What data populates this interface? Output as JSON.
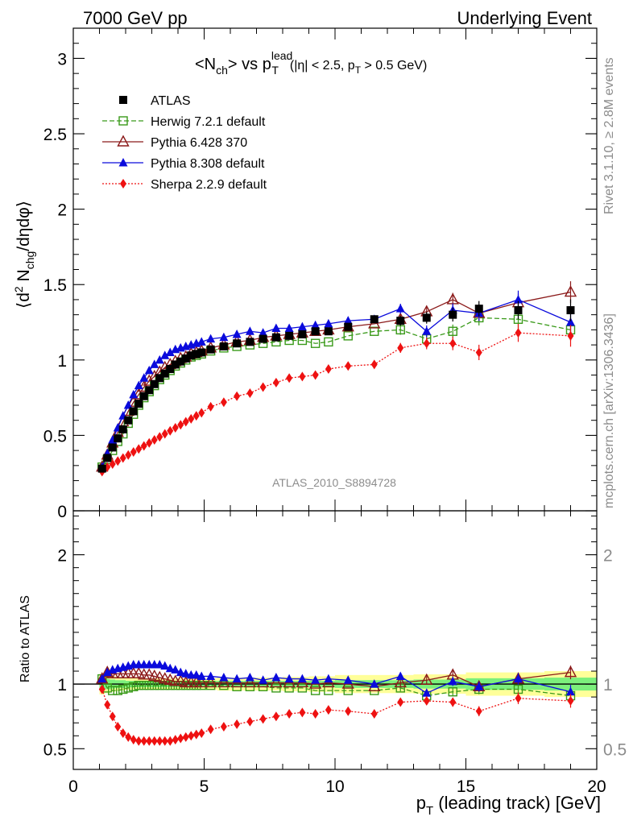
{
  "header": {
    "left": "7000 GeV pp",
    "right": "Underlying Event"
  },
  "side_labels": {
    "rivet": "Rivet 3.1.10, ≥ 2.8M events",
    "mcplots": "mcplots.cern.ch [arXiv:1306.3436]"
  },
  "title": {
    "main": "<N",
    "main_sub": "ch",
    "main_rest": "> vs p",
    "sup": "lead",
    "sub": "T",
    "cut_a": "(|η| < 2.5, p",
    "cut_sub": "T",
    "cut_b": " > 0.5 GeV)"
  },
  "ylabel_top": {
    "open": "⟨d",
    "sup": "2",
    "mid": " N",
    "sub": "chg",
    "rest": "/dηdφ⟩"
  },
  "ylabel_bottom": "Ratio to ATLAS",
  "xlabel": {
    "p": "p",
    "sub": "T",
    "rest": " (leading track) [GeV]"
  },
  "watermark": "ATLAS_2010_S8894728",
  "colors": {
    "atlas": "#000000",
    "herwig": "#3a9a1a",
    "pythia6": "#8b1a1a",
    "pythia8": "#0a0adc",
    "sherpa": "#ee1111",
    "band_inner": "#7cf07c",
    "band_outer": "#ffff99"
  },
  "chart_data": [
    {
      "type": "line",
      "xlim": [
        0,
        20
      ],
      "ylim": [
        0,
        3.2
      ],
      "xticks": [
        "0",
        "5",
        "10",
        "15",
        "20"
      ],
      "yticks": [
        "0",
        "0.5",
        "1",
        "1.5",
        "2",
        "2.5",
        "3"
      ],
      "x": [
        1.1,
        1.3,
        1.5,
        1.7,
        1.9,
        2.1,
        2.3,
        2.5,
        2.7,
        2.9,
        3.1,
        3.3,
        3.5,
        3.7,
        3.9,
        4.1,
        4.3,
        4.5,
        4.7,
        4.9,
        5.25,
        5.75,
        6.25,
        6.75,
        7.25,
        7.75,
        8.25,
        8.75,
        9.25,
        9.75,
        10.5,
        11.5,
        12.5,
        13.5,
        14.5,
        15.5,
        17.0,
        19.0
      ],
      "series": [
        {
          "name": "ATLAS",
          "marker": "square-filled",
          "values": [
            0.28,
            0.35,
            0.42,
            0.48,
            0.54,
            0.6,
            0.66,
            0.71,
            0.76,
            0.8,
            0.84,
            0.88,
            0.91,
            0.94,
            0.97,
            0.99,
            1.01,
            1.03,
            1.04,
            1.05,
            1.07,
            1.09,
            1.11,
            1.12,
            1.14,
            1.15,
            1.16,
            1.17,
            1.19,
            1.19,
            1.22,
            1.27,
            1.26,
            1.28,
            1.3,
            1.34,
            1.33,
            1.33
          ]
        },
        {
          "name": "Herwig 7.2.1 default",
          "marker": "square-open",
          "values": [
            0.29,
            0.34,
            0.4,
            0.46,
            0.51,
            0.58,
            0.64,
            0.7,
            0.75,
            0.79,
            0.83,
            0.87,
            0.9,
            0.93,
            0.96,
            0.98,
            1.0,
            1.02,
            1.03,
            1.04,
            1.06,
            1.08,
            1.09,
            1.1,
            1.11,
            1.12,
            1.13,
            1.13,
            1.11,
            1.12,
            1.16,
            1.19,
            1.2,
            1.14,
            1.19,
            1.28,
            1.27,
            1.2
          ]
        },
        {
          "name": "Pythia 6.428 370",
          "marker": "triangle-open",
          "values": [
            0.29,
            0.37,
            0.45,
            0.52,
            0.59,
            0.66,
            0.72,
            0.77,
            0.82,
            0.86,
            0.89,
            0.92,
            0.95,
            0.97,
            0.99,
            1.01,
            1.02,
            1.04,
            1.05,
            1.06,
            1.08,
            1.1,
            1.12,
            1.13,
            1.15,
            1.16,
            1.17,
            1.18,
            1.19,
            1.2,
            1.22,
            1.24,
            1.27,
            1.32,
            1.4,
            1.31,
            1.38,
            1.45
          ]
        },
        {
          "name": "Pythia 8.308 default",
          "marker": "triangle-filled",
          "values": [
            0.29,
            0.38,
            0.47,
            0.55,
            0.63,
            0.7,
            0.77,
            0.83,
            0.88,
            0.93,
            0.97,
            1.0,
            1.03,
            1.05,
            1.07,
            1.08,
            1.09,
            1.1,
            1.11,
            1.12,
            1.14,
            1.15,
            1.17,
            1.19,
            1.18,
            1.21,
            1.21,
            1.22,
            1.23,
            1.24,
            1.26,
            1.27,
            1.34,
            1.19,
            1.33,
            1.31,
            1.4,
            1.25
          ]
        },
        {
          "name": "Sherpa 2.2.9 default",
          "marker": "diamond-filled",
          "values": [
            0.26,
            0.29,
            0.31,
            0.33,
            0.35,
            0.37,
            0.39,
            0.41,
            0.43,
            0.45,
            0.47,
            0.49,
            0.51,
            0.53,
            0.55,
            0.57,
            0.59,
            0.61,
            0.63,
            0.65,
            0.69,
            0.72,
            0.76,
            0.78,
            0.82,
            0.85,
            0.88,
            0.89,
            0.9,
            0.94,
            0.96,
            0.97,
            1.08,
            1.11,
            1.11,
            1.05,
            1.18,
            1.16
          ]
        }
      ]
    },
    {
      "type": "line",
      "xlim": [
        0,
        20
      ],
      "ylim": [
        0.34,
        2.34
      ],
      "yticks": [
        "0.5",
        "1",
        "2"
      ],
      "ylabel": "Ratio to ATLAS",
      "x_edges": [
        1.0,
        1.2,
        1.4,
        1.6,
        1.8,
        2.0,
        2.2,
        2.4,
        2.6,
        2.8,
        3.0,
        3.2,
        3.4,
        3.6,
        3.8,
        4.0,
        4.2,
        4.4,
        4.6,
        4.8,
        5.0,
        5.5,
        6.0,
        6.5,
        7.0,
        7.5,
        8.0,
        8.5,
        9.0,
        9.5,
        10.0,
        11.0,
        12.0,
        13.0,
        14.0,
        15.0,
        16.0,
        18.0,
        20.0
      ],
      "band_inner_halfwidth": [
        0.05,
        0.04,
        0.035,
        0.03,
        0.03,
        0.025,
        0.025,
        0.025,
        0.025,
        0.025,
        0.025,
        0.025,
        0.025,
        0.025,
        0.025,
        0.025,
        0.025,
        0.025,
        0.025,
        0.025,
        0.025,
        0.025,
        0.025,
        0.025,
        0.025,
        0.025,
        0.025,
        0.025,
        0.025,
        0.025,
        0.03,
        0.03,
        0.03,
        0.035,
        0.035,
        0.045,
        0.045,
        0.05
      ],
      "band_outer_halfwidth": [
        0.08,
        0.07,
        0.06,
        0.055,
        0.05,
        0.045,
        0.045,
        0.045,
        0.045,
        0.045,
        0.045,
        0.045,
        0.045,
        0.045,
        0.045,
        0.045,
        0.045,
        0.045,
        0.045,
        0.045,
        0.045,
        0.05,
        0.05,
        0.05,
        0.05,
        0.05,
        0.055,
        0.055,
        0.06,
        0.06,
        0.07,
        0.07,
        0.07,
        0.075,
        0.075,
        0.09,
        0.09,
        0.1
      ],
      "series": [
        {
          "name": "Herwig 7.2.1 default",
          "values": [
            1.04,
            0.97,
            0.95,
            0.95,
            0.96,
            0.97,
            0.98,
            0.99,
            0.99,
            0.99,
            0.99,
            0.99,
            0.99,
            0.99,
            0.99,
            0.99,
            0.99,
            0.99,
            0.99,
            0.99,
            0.99,
            0.99,
            0.98,
            0.98,
            0.98,
            0.97,
            0.97,
            0.97,
            0.95,
            0.95,
            0.95,
            0.95,
            0.97,
            0.91,
            0.94,
            0.96,
            0.96,
            0.91
          ]
        },
        {
          "name": "Pythia 6.428 370",
          "values": [
            1.04,
            1.09,
            1.08,
            1.08,
            1.08,
            1.08,
            1.08,
            1.08,
            1.07,
            1.07,
            1.06,
            1.05,
            1.04,
            1.03,
            1.02,
            1.02,
            1.01,
            1.01,
            1.01,
            1.01,
            1.01,
            1.01,
            1.01,
            1.01,
            1.01,
            1.01,
            1.01,
            1.01,
            1.0,
            1.01,
            1.0,
            0.98,
            1.01,
            1.03,
            1.07,
            0.98,
            1.04,
            1.09
          ]
        },
        {
          "name": "Pythia 8.308 default",
          "values": [
            1.04,
            1.09,
            1.11,
            1.12,
            1.13,
            1.14,
            1.15,
            1.15,
            1.15,
            1.15,
            1.15,
            1.15,
            1.14,
            1.12,
            1.11,
            1.09,
            1.08,
            1.07,
            1.07,
            1.06,
            1.06,
            1.05,
            1.04,
            1.05,
            1.03,
            1.05,
            1.04,
            1.04,
            1.03,
            1.04,
            1.03,
            1.0,
            1.06,
            0.93,
            1.02,
            0.98,
            1.04,
            0.94
          ]
        },
        {
          "name": "Sherpa 2.2.9 default",
          "values": [
            0.96,
            0.84,
            0.75,
            0.67,
            0.62,
            0.59,
            0.57,
            0.56,
            0.56,
            0.56,
            0.56,
            0.56,
            0.56,
            0.56,
            0.57,
            0.58,
            0.59,
            0.6,
            0.61,
            0.62,
            0.65,
            0.67,
            0.69,
            0.71,
            0.73,
            0.75,
            0.77,
            0.78,
            0.77,
            0.8,
            0.79,
            0.77,
            0.86,
            0.87,
            0.86,
            0.79,
            0.89,
            0.87
          ]
        }
      ]
    }
  ]
}
